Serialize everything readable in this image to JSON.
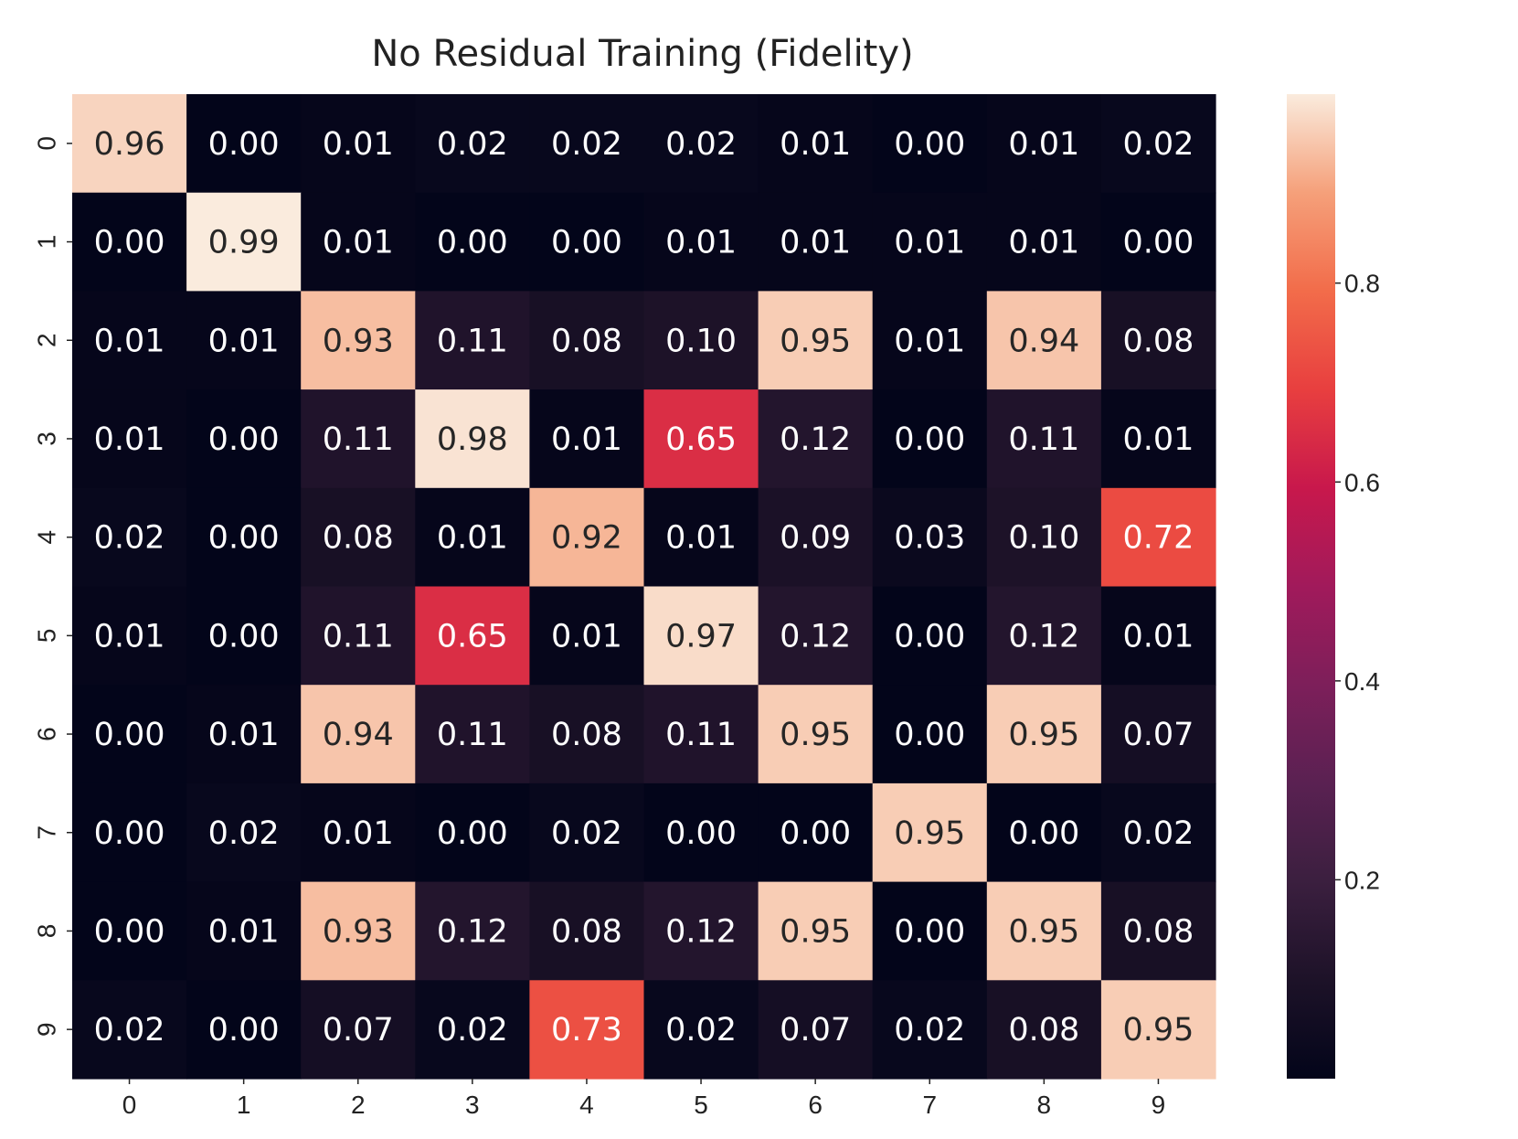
{
  "chart_data": {
    "type": "heatmap",
    "title": "No Residual Training (Fidelity)",
    "xlabel": "",
    "ylabel": "",
    "x_categories": [
      "0",
      "1",
      "2",
      "3",
      "4",
      "5",
      "6",
      "7",
      "8",
      "9"
    ],
    "y_categories": [
      "0",
      "1",
      "2",
      "3",
      "4",
      "5",
      "6",
      "7",
      "8",
      "9"
    ],
    "values": [
      [
        0.96,
        0.0,
        0.01,
        0.02,
        0.02,
        0.02,
        0.01,
        0.0,
        0.01,
        0.02
      ],
      [
        0.0,
        0.99,
        0.01,
        0.0,
        0.0,
        0.01,
        0.01,
        0.01,
        0.01,
        0.0
      ],
      [
        0.01,
        0.01,
        0.93,
        0.11,
        0.08,
        0.1,
        0.95,
        0.01,
        0.94,
        0.08
      ],
      [
        0.01,
        0.0,
        0.11,
        0.98,
        0.01,
        0.65,
        0.12,
        0.0,
        0.11,
        0.01
      ],
      [
        0.02,
        0.0,
        0.08,
        0.01,
        0.92,
        0.01,
        0.09,
        0.03,
        0.1,
        0.72
      ],
      [
        0.01,
        0.0,
        0.11,
        0.65,
        0.01,
        0.97,
        0.12,
        0.0,
        0.12,
        0.01
      ],
      [
        0.0,
        0.01,
        0.94,
        0.11,
        0.08,
        0.11,
        0.95,
        0.0,
        0.95,
        0.07
      ],
      [
        0.0,
        0.02,
        0.01,
        0.0,
        0.02,
        0.0,
        0.0,
        0.95,
        0.0,
        0.02
      ],
      [
        0.0,
        0.01,
        0.93,
        0.12,
        0.08,
        0.12,
        0.95,
        0.0,
        0.95,
        0.08
      ],
      [
        0.02,
        0.0,
        0.07,
        0.02,
        0.73,
        0.02,
        0.07,
        0.02,
        0.08,
        0.95
      ]
    ],
    "value_format": "0.00",
    "colormap": "rocket",
    "vmin": 0.0,
    "vmax": 0.99,
    "colorbar": {
      "ticks": [
        0.2,
        0.4,
        0.6,
        0.8
      ],
      "tick_labels": [
        "0.2",
        "0.4",
        "0.6",
        "0.8"
      ],
      "placement": "right"
    },
    "grid": false
  }
}
